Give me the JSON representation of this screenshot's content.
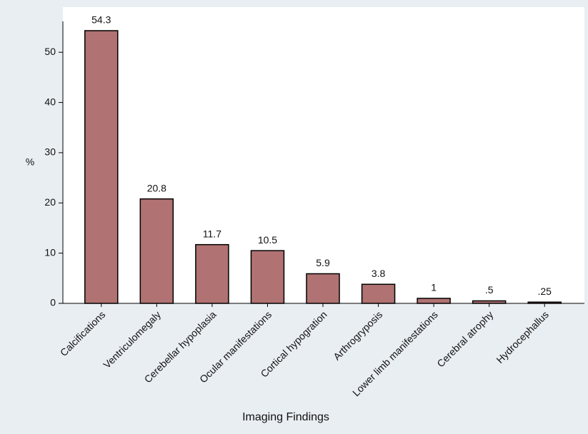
{
  "chart_data": {
    "type": "bar",
    "x_label": "Imaging Findings",
    "y_label": "%",
    "categories": [
      "Calcifications",
      "Ventriculomegaly",
      "Cerebellar hypoplasia",
      "Ocular manifestations",
      "Cortical hypogration",
      "Arthrogryposis",
      "Lower  limb manifestations",
      "Cerebral atrophy",
      "Hydrocephallus"
    ],
    "values": [
      54.3,
      20.8,
      11.7,
      10.5,
      5.9,
      3.8,
      1,
      0.5,
      0.25
    ],
    "value_labels": [
      "54.3",
      "20.8",
      "11.7",
      "10.5",
      "5.9",
      "3.8",
      "1",
      ".5",
      ".25"
    ],
    "color": "#b07272",
    "ylim": [
      0,
      56
    ],
    "yticks": [
      0,
      10,
      20,
      30,
      40,
      50
    ],
    "grid": false
  }
}
